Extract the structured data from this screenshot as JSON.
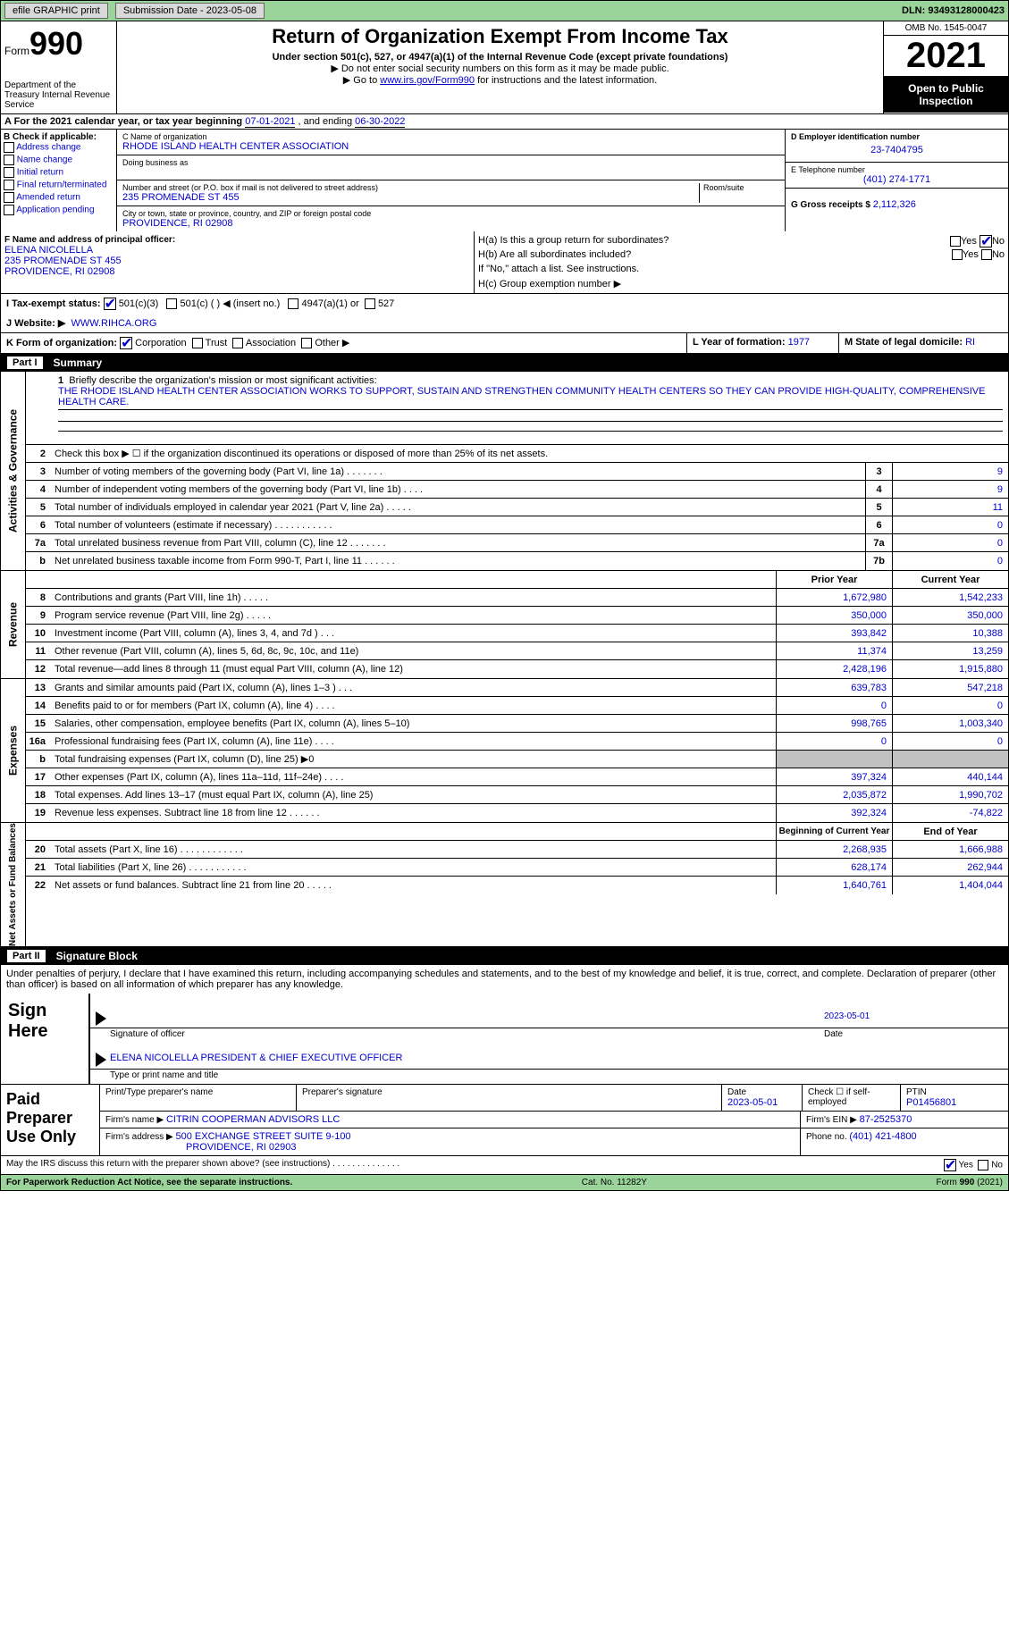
{
  "topbar": {
    "efile": "efile GRAPHIC print",
    "submission": "Submission Date - 2023-05-08",
    "dln": "DLN: 93493128000423"
  },
  "header": {
    "form_label": "Form",
    "form_no": "990",
    "title": "Return of Organization Exempt From Income Tax",
    "subtitle": "Under section 501(c), 527, or 4947(a)(1) of the Internal Revenue Code (except private foundations)",
    "note1": "▶ Do not enter social security numbers on this form as it may be made public.",
    "note2": "▶ Go to ",
    "link": "www.irs.gov/Form990",
    "note3": " for instructions and the latest information.",
    "dept": "Department of the Treasury Internal Revenue Service",
    "omb": "OMB No. 1545-0047",
    "year": "2021",
    "inspect": "Open to Public Inspection"
  },
  "A": {
    "text": "A For the 2021 calendar year, or tax year beginning ",
    "begin": "07-01-2021",
    "mid": "  , and ending ",
    "end": "06-30-2022"
  },
  "B": {
    "label": "B Check if applicable:",
    "opts": [
      "Address change",
      "Name change",
      "Initial return",
      "Final return/terminated",
      "Amended return",
      "Application pending"
    ]
  },
  "C": {
    "name_label": "C Name of organization",
    "name": "RHODE ISLAND HEALTH CENTER ASSOCIATION",
    "dba_label": "Doing business as",
    "addr_label": "Number and street (or P.O. box if mail is not delivered to street address)",
    "room_label": "Room/suite",
    "addr": "235 PROMENADE ST 455",
    "city_label": "City or town, state or province, country, and ZIP or foreign postal code",
    "city": "PROVIDENCE, RI  02908"
  },
  "D": {
    "label": "D Employer identification number",
    "val": "23-7404795"
  },
  "E": {
    "label": "E Telephone number",
    "val": "(401) 274-1771"
  },
  "G": {
    "label": "G Gross receipts $",
    "val": "2,112,326"
  },
  "F": {
    "label": "F Name and address of principal officer:",
    "name": "ELENA NICOLELLA",
    "addr1": "235 PROMENADE ST 455",
    "addr2": "PROVIDENCE, RI  02908"
  },
  "H": {
    "a": "H(a)  Is this a group return for subordinates?",
    "b": "H(b)  Are all subordinates included?",
    "bnote": "If \"No,\" attach a list. See instructions.",
    "c": "H(c)  Group exemption number ▶"
  },
  "I": {
    "label": "I  Tax-exempt status:",
    "o1": "501(c)(3)",
    "o2": "501(c) (  ) ◀ (insert no.)",
    "o3": "4947(a)(1) or",
    "o4": "527"
  },
  "J": {
    "label": "J  Website: ▶",
    "val": "WWW.RIHCA.ORG"
  },
  "K": {
    "label": "K Form of organization:",
    "o1": "Corporation",
    "o2": "Trust",
    "o3": "Association",
    "o4": "Other ▶"
  },
  "L": {
    "label": "L Year of formation:",
    "val": "1977"
  },
  "M": {
    "label": "M State of legal domicile:",
    "val": "RI"
  },
  "partI": {
    "num": "Part I",
    "title": "Summary"
  },
  "summary": {
    "tab1": "Activities & Governance",
    "tab2": "Revenue",
    "tab3": "Expenses",
    "tab4": "Net Assets or Fund Balances",
    "l1_label": "Briefly describe the organization's mission or most significant activities:",
    "l1_text": "THE RHODE ISLAND HEALTH CENTER ASSOCIATION WORKS TO SUPPORT, SUSTAIN AND STRENGTHEN COMMUNITY HEALTH CENTERS SO THEY CAN PROVIDE HIGH-QUALITY, COMPREHENSIVE HEALTH CARE.",
    "l2": "Check this box ▶ ☐ if the organization discontinued its operations or disposed of more than 25% of its net assets.",
    "rows_gov": [
      {
        "n": "3",
        "t": "Number of voting members of the governing body (Part VI, line 1a)   .    .    .    .    .    .    .",
        "box": "3",
        "v": "9"
      },
      {
        "n": "4",
        "t": "Number of independent voting members of the governing body (Part VI, line 1b)  .    .    .    .",
        "box": "4",
        "v": "9"
      },
      {
        "n": "5",
        "t": "Total number of individuals employed in calendar year 2021 (Part V, line 2a)    .    .    .    .    .",
        "box": "5",
        "v": "11"
      },
      {
        "n": "6",
        "t": "Total number of volunteers (estimate if necessary)    .    .    .    .    .    .    .    .    .    .    .",
        "box": "6",
        "v": "0"
      },
      {
        "n": "7a",
        "t": "Total unrelated business revenue from Part VIII, column (C), line 12    .    .    .    .    .    .    .",
        "box": "7a",
        "v": "0"
      },
      {
        "n": "b",
        "t": "Net unrelated business taxable income from Form 990-T, Part I, line 11   .    .    .    .    .    .",
        "box": "7b",
        "v": "0"
      }
    ],
    "col_prior": "Prior Year",
    "col_current": "Current Year",
    "rows_rev": [
      {
        "n": "8",
        "t": "Contributions and grants (Part VIII, line 1h)   .    .    .    .    .",
        "p": "1,672,980",
        "c": "1,542,233"
      },
      {
        "n": "9",
        "t": "Program service revenue (Part VIII, line 2g)   .    .    .    .    .",
        "p": "350,000",
        "c": "350,000"
      },
      {
        "n": "10",
        "t": "Investment income (Part VIII, column (A), lines 3, 4, and 7d )   .    .    .",
        "p": "393,842",
        "c": "10,388"
      },
      {
        "n": "11",
        "t": "Other revenue (Part VIII, column (A), lines 5, 6d, 8c, 9c, 10c, and 11e)",
        "p": "11,374",
        "c": "13,259"
      },
      {
        "n": "12",
        "t": "Total revenue—add lines 8 through 11 (must equal Part VIII, column (A), line 12)",
        "p": "2,428,196",
        "c": "1,915,880"
      }
    ],
    "rows_exp": [
      {
        "n": "13",
        "t": "Grants and similar amounts paid (Part IX, column (A), lines 1–3 )   .    .    .",
        "p": "639,783",
        "c": "547,218"
      },
      {
        "n": "14",
        "t": "Benefits paid to or for members (Part IX, column (A), line 4)   .    .    .    .",
        "p": "0",
        "c": "0"
      },
      {
        "n": "15",
        "t": "Salaries, other compensation, employee benefits (Part IX, column (A), lines 5–10)",
        "p": "998,765",
        "c": "1,003,340"
      },
      {
        "n": "16a",
        "t": "Professional fundraising fees (Part IX, column (A), line 11e)   .    .    .    .",
        "p": "0",
        "c": "0"
      },
      {
        "n": "b",
        "t": "Total fundraising expenses (Part IX, column (D), line 25) ▶0",
        "p": "",
        "c": "",
        "shade": true
      },
      {
        "n": "17",
        "t": "Other expenses (Part IX, column (A), lines 11a–11d, 11f–24e)   .    .    .    .",
        "p": "397,324",
        "c": "440,144"
      },
      {
        "n": "18",
        "t": "Total expenses. Add lines 13–17 (must equal Part IX, column (A), line 25)",
        "p": "2,035,872",
        "c": "1,990,702"
      },
      {
        "n": "19",
        "t": "Revenue less expenses. Subtract line 18 from line 12   .    .    .    .    .    .",
        "p": "392,324",
        "c": "-74,822"
      }
    ],
    "col_begin": "Beginning of Current Year",
    "col_end": "End of Year",
    "rows_net": [
      {
        "n": "20",
        "t": "Total assets (Part X, line 16)   .    .    .    .    .    .    .    .    .    .    .    .",
        "p": "2,268,935",
        "c": "1,666,988"
      },
      {
        "n": "21",
        "t": "Total liabilities (Part X, line 26)   .    .    .    .    .    .    .    .    .    .    .",
        "p": "628,174",
        "c": "262,944"
      },
      {
        "n": "22",
        "t": "Net assets or fund balances. Subtract line 21 from line 20   .    .    .    .    .",
        "p": "1,640,761",
        "c": "1,404,044"
      }
    ]
  },
  "partII": {
    "num": "Part II",
    "title": "Signature Block"
  },
  "sig": {
    "decl": "Under penalties of perjury, I declare that I have examined this return, including accompanying schedules and statements, and to the best of my knowledge and belief, it is true, correct, and complete. Declaration of preparer (other than officer) is based on all information of which preparer has any knowledge.",
    "sign_here": "Sign Here",
    "sig_officer": "Signature of officer",
    "sig_date": "2023-05-01",
    "date_l": "Date",
    "name": "ELENA NICOLELLA PRESIDENT & CHIEF EXECUTIVE OFFICER",
    "name_l": "Type or print name and title"
  },
  "prep": {
    "label": "Paid Preparer Use Only",
    "h1": "Print/Type preparer's name",
    "h2": "Preparer's signature",
    "h3": "Date",
    "h3v": "2023-05-01",
    "h4": "Check ☐ if self-employed",
    "h5": "PTIN",
    "h5v": "P01456801",
    "firm_l": "Firm's name    ▶",
    "firm": "CITRIN COOPERMAN ADVISORS LLC",
    "ein_l": "Firm's EIN ▶",
    "ein": "87-2525370",
    "addr_l": "Firm's address ▶",
    "addr": "500 EXCHANGE STREET SUITE 9-100",
    "addr2": "PROVIDENCE, RI  02903",
    "phone_l": "Phone no.",
    "phone": "(401) 421-4800"
  },
  "discuss": {
    "q": "May the IRS discuss this return with the preparer shown above? (see instructions)   .    .    .    .    .    .    .    .    .    .    .    .    .    .",
    "yes": "Yes",
    "no": "No"
  },
  "footer": {
    "left": "For Paperwork Reduction Act Notice, see the separate instructions.",
    "mid": "Cat. No. 11282Y",
    "right": "Form 990 (2021)"
  }
}
